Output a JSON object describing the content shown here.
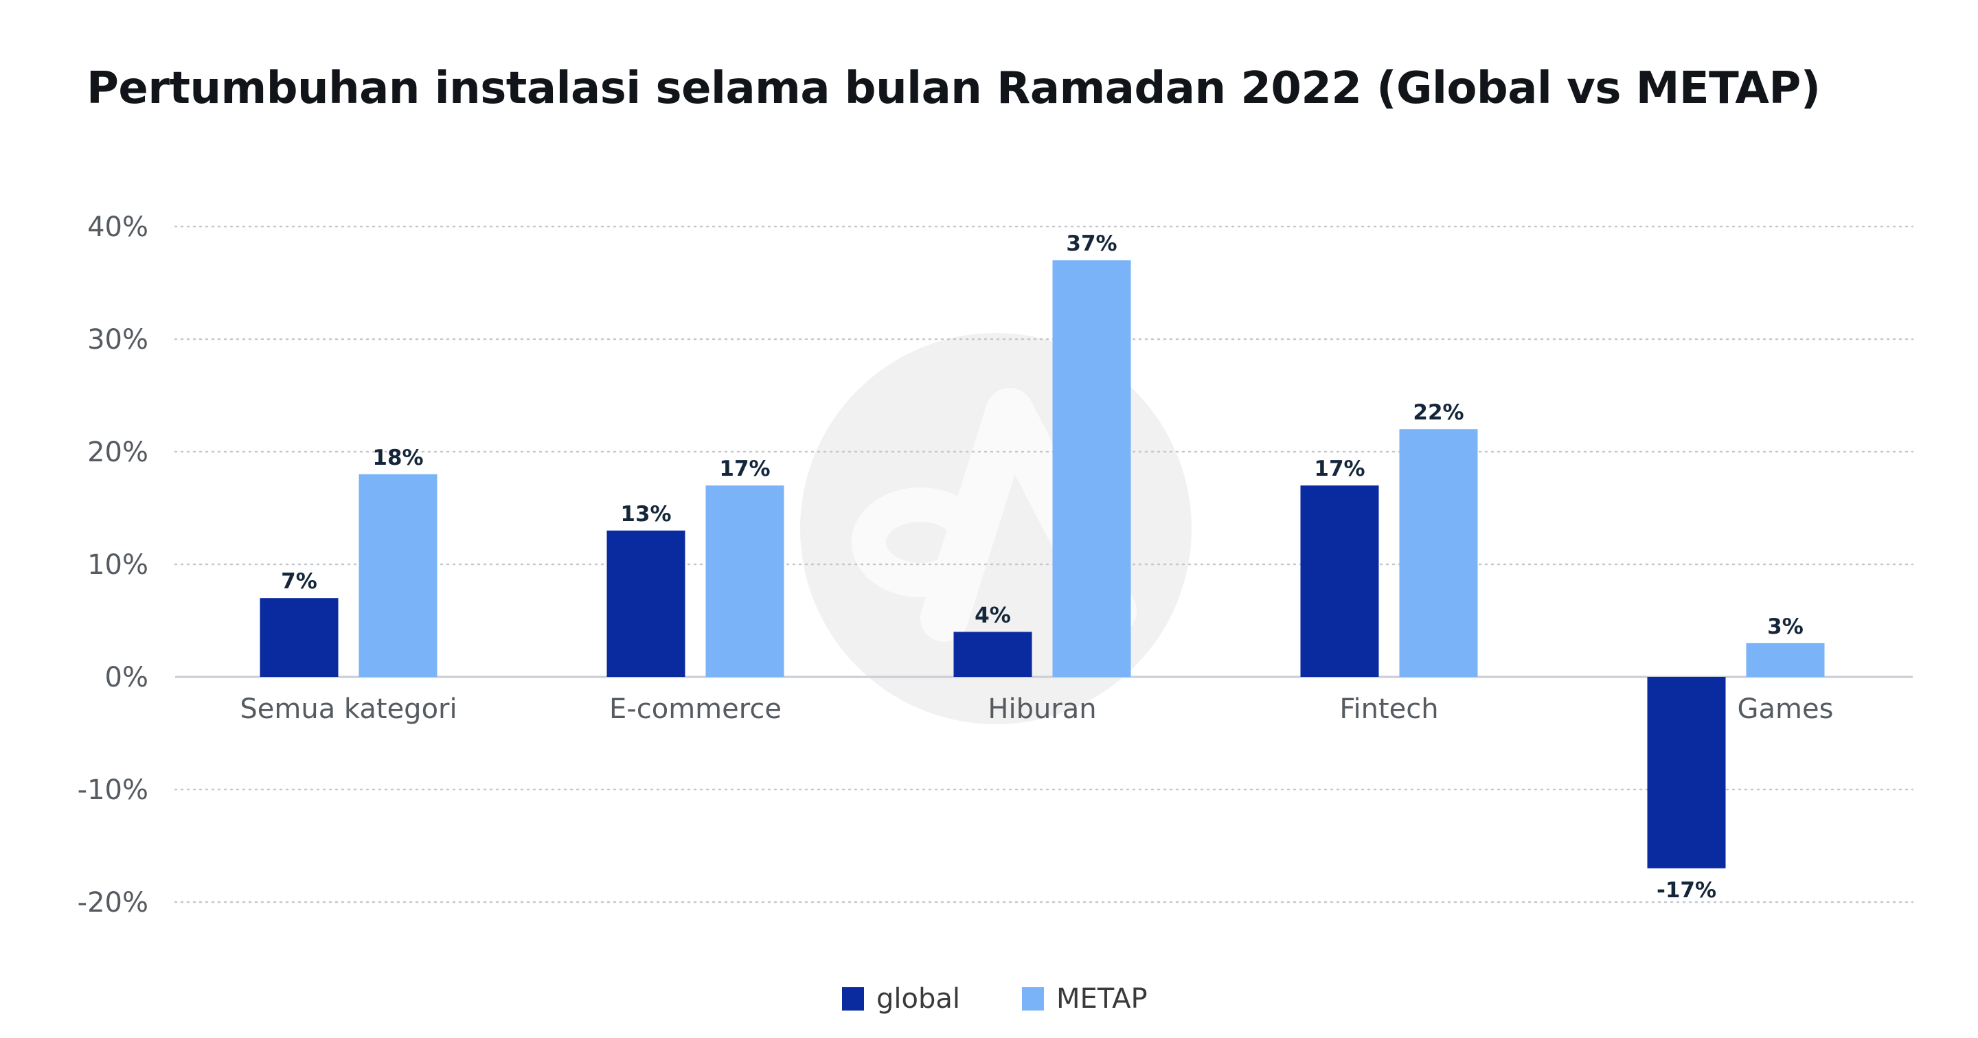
{
  "chart_data": {
    "type": "bar",
    "title": "Pertumbuhan instalasi selama bulan Ramadan 2022 (Global vs METAP)",
    "categories": [
      "Semua kategori",
      "E-commerce",
      "Hiburan",
      "Fintech",
      "Games"
    ],
    "series": [
      {
        "name": "global",
        "values": [
          7,
          13,
          4,
          17,
          -17
        ],
        "labels": [
          "7%",
          "13%",
          "4%",
          "17%",
          "-17%"
        ],
        "color": "#0a2a9f"
      },
      {
        "name": "METAP",
        "values": [
          18,
          17,
          37,
          22,
          3
        ],
        "labels": [
          "18%",
          "17%",
          "37%",
          "22%",
          "3%"
        ],
        "color": "#7ab3f7"
      }
    ],
    "ylim": [
      -20,
      40
    ],
    "yticks": [
      40,
      30,
      20,
      10,
      0,
      -10,
      -20
    ],
    "ytick_labels": [
      "40%",
      "30%",
      "20%",
      "10%",
      "0%",
      "-10%",
      "-20%"
    ],
    "grid": true,
    "legend_position": "bottom-center",
    "colors": {
      "zero_line": "#c9cdd3",
      "grid": "#c4c8cd",
      "tick_label": "#555b61",
      "data_label": "#14263a",
      "watermark": "#f1f1f1"
    }
  }
}
